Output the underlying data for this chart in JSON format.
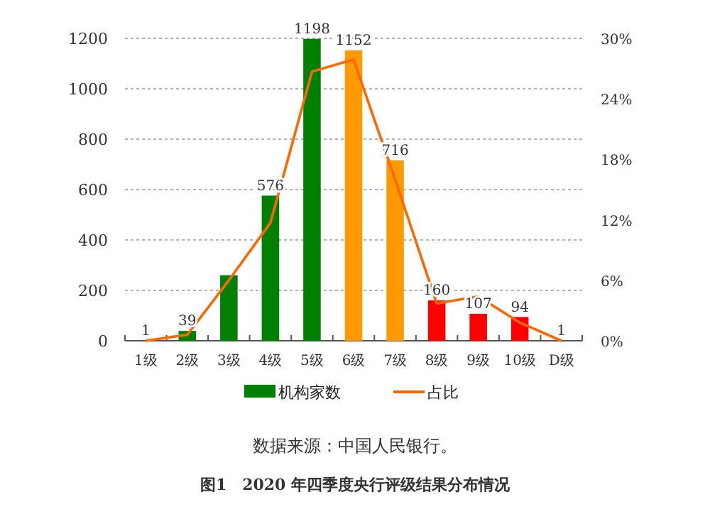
{
  "chart_data": {
    "type": "bar",
    "categories": [
      "1级",
      "2级",
      "3级",
      "4级",
      "5级",
      "6级",
      "7级",
      "8级",
      "9级",
      "10级",
      "D级"
    ],
    "series": [
      {
        "name": "机构家数",
        "color": "#008000",
        "colors": [
          "#008000",
          "#008000",
          "#008000",
          "#008000",
          "#008000",
          "#ff9900",
          "#ff9900",
          "#ff0000",
          "#ff0000",
          "#ff0000",
          "#ff0000"
        ],
        "values": [
          1,
          39,
          260,
          576,
          1198,
          1152,
          716,
          160,
          107,
          94,
          1
        ],
        "value_labels": [
          "1",
          "39",
          null,
          "576",
          "1198",
          "1152",
          "716",
          "160",
          "107",
          "94",
          "1"
        ]
      },
      {
        "name": "占比",
        "type": "line",
        "axis": "y2",
        "color": "#ff6600",
        "values": [
          0,
          0.6,
          6,
          11.7,
          26.7,
          27.9,
          16,
          3.7,
          4.4,
          1.8,
          0
        ]
      }
    ],
    "ylim": [
      0,
      1200
    ],
    "yticks": [
      0,
      200,
      400,
      600,
      800,
      1000,
      1200
    ],
    "y2lim": [
      0,
      30
    ],
    "y2ticks": [
      {
        "value": 0,
        "label": "0%"
      },
      {
        "value": 6,
        "label": "6%"
      },
      {
        "value": 12,
        "label": "12%"
      },
      {
        "value": 18,
        "label": "18%"
      },
      {
        "value": 24,
        "label": "24%"
      },
      {
        "value": 30,
        "label": "30%"
      }
    ],
    "grid": "y",
    "legend": "bottom",
    "annotations": [
      "数据来源：中国人民银行。",
      "图1　2020 年四季度央行评级结果分布情况"
    ]
  }
}
